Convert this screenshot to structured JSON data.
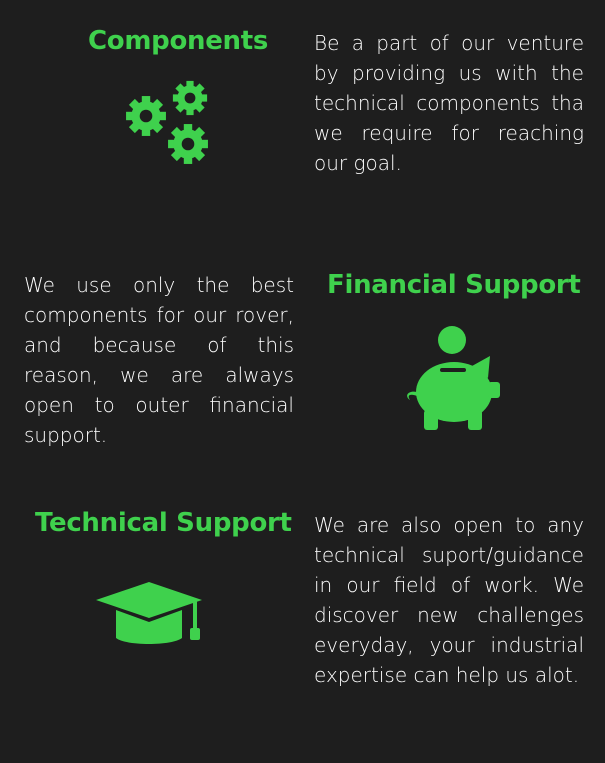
{
  "colors": {
    "background": "#1e1e1e",
    "accent": "#3fd14d",
    "text": "#ffffff"
  },
  "sections": {
    "components": {
      "title": "Components",
      "icon": "gears-icon",
      "text": "Be a part of our venture by providing us with the technical components tha we require for reaching our goal."
    },
    "financial": {
      "title": "Financial Support",
      "icon": "piggy-bank-icon",
      "text": "We use only the best components for our rover, and because of this reason, we are always open to outer financial support."
    },
    "technical": {
      "title": "Technical Support",
      "icon": "graduation-cap-icon",
      "text": "We are also open to any technical suport/guidance in our field of work. We discover new challenges everyday, your industrial expertise can help us alot."
    }
  }
}
